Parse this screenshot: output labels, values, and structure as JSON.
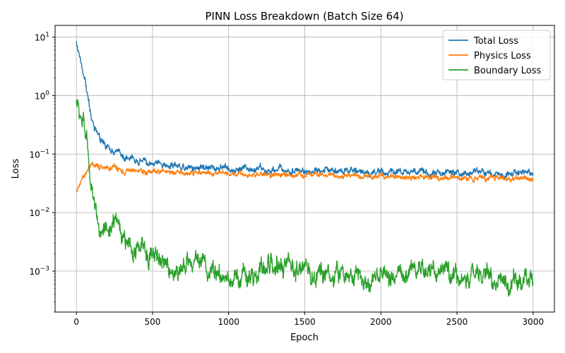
{
  "chart_data": {
    "type": "line",
    "title": "PINN Loss Breakdown (Batch Size 64)",
    "xlabel": "Epoch",
    "ylabel": "Loss",
    "xlim": [
      -140,
      3140
    ],
    "ylim_log10": [
      -3.7,
      1.2
    ],
    "yscale": "log",
    "grid": true,
    "legend_position": "top-right",
    "x_ticks": [
      {
        "value": 0,
        "label": "0"
      },
      {
        "value": 500,
        "label": "500"
      },
      {
        "value": 1000,
        "label": "1000"
      },
      {
        "value": 1500,
        "label": "1500"
      },
      {
        "value": 2000,
        "label": "2000"
      },
      {
        "value": 2500,
        "label": "2500"
      },
      {
        "value": 3000,
        "label": "3000"
      }
    ],
    "y_ticks": [
      {
        "value": 0.001,
        "base": "10",
        "exp": "−3"
      },
      {
        "value": 0.01,
        "base": "10",
        "exp": "−2"
      },
      {
        "value": 0.1,
        "base": "10",
        "exp": "−1"
      },
      {
        "value": 1,
        "base": "10",
        "exp": "0"
      },
      {
        "value": 10,
        "base": "10",
        "exp": "1"
      }
    ],
    "series": [
      {
        "name": "Total Loss",
        "color": "#1f77b4",
        "noise": 0.05,
        "x": [
          0,
          20,
          40,
          60,
          80,
          100,
          120,
          150,
          200,
          250,
          300,
          400,
          500,
          600,
          700,
          800,
          1000,
          1200,
          1500,
          2000,
          2500,
          3000
        ],
        "y": [
          8.0,
          5.0,
          3.0,
          1.7,
          0.8,
          0.4,
          0.26,
          0.19,
          0.135,
          0.11,
          0.095,
          0.08,
          0.07,
          0.065,
          0.062,
          0.06,
          0.057,
          0.055,
          0.053,
          0.05,
          0.048,
          0.046
        ]
      },
      {
        "name": "Physics Loss",
        "color": "#ff7f0e",
        "noise": 0.04,
        "x": [
          0,
          20,
          40,
          60,
          80,
          100,
          120,
          150,
          200,
          300,
          500,
          1000,
          1500,
          2000,
          2500,
          3000
        ],
        "y": [
          0.023,
          0.03,
          0.038,
          0.048,
          0.057,
          0.063,
          0.063,
          0.06,
          0.057,
          0.053,
          0.05,
          0.046,
          0.044,
          0.042,
          0.04,
          0.037
        ]
      },
      {
        "name": "Boundary Loss",
        "color": "#2ca02c",
        "noise": 0.14,
        "x": [
          0,
          20,
          40,
          60,
          80,
          100,
          120,
          150,
          200,
          250,
          300,
          400,
          500,
          600,
          700,
          800,
          900,
          1000,
          1200,
          1400,
          1500,
          1600,
          1800,
          2000,
          2200,
          2400,
          2500,
          2600,
          2700,
          2800,
          2900,
          3000
        ],
        "y": [
          0.8,
          0.55,
          0.35,
          0.2,
          0.09,
          0.035,
          0.015,
          0.0085,
          0.0055,
          0.004,
          0.0033,
          0.0024,
          0.0017,
          0.0014,
          0.0012,
          0.0013,
          0.0011,
          0.001,
          0.0011,
          0.00095,
          0.0009,
          0.0009,
          0.00085,
          0.0009,
          0.0008,
          0.0007,
          0.00065,
          0.0008,
          0.00085,
          0.00075,
          0.0006,
          0.0007
        ]
      }
    ]
  }
}
